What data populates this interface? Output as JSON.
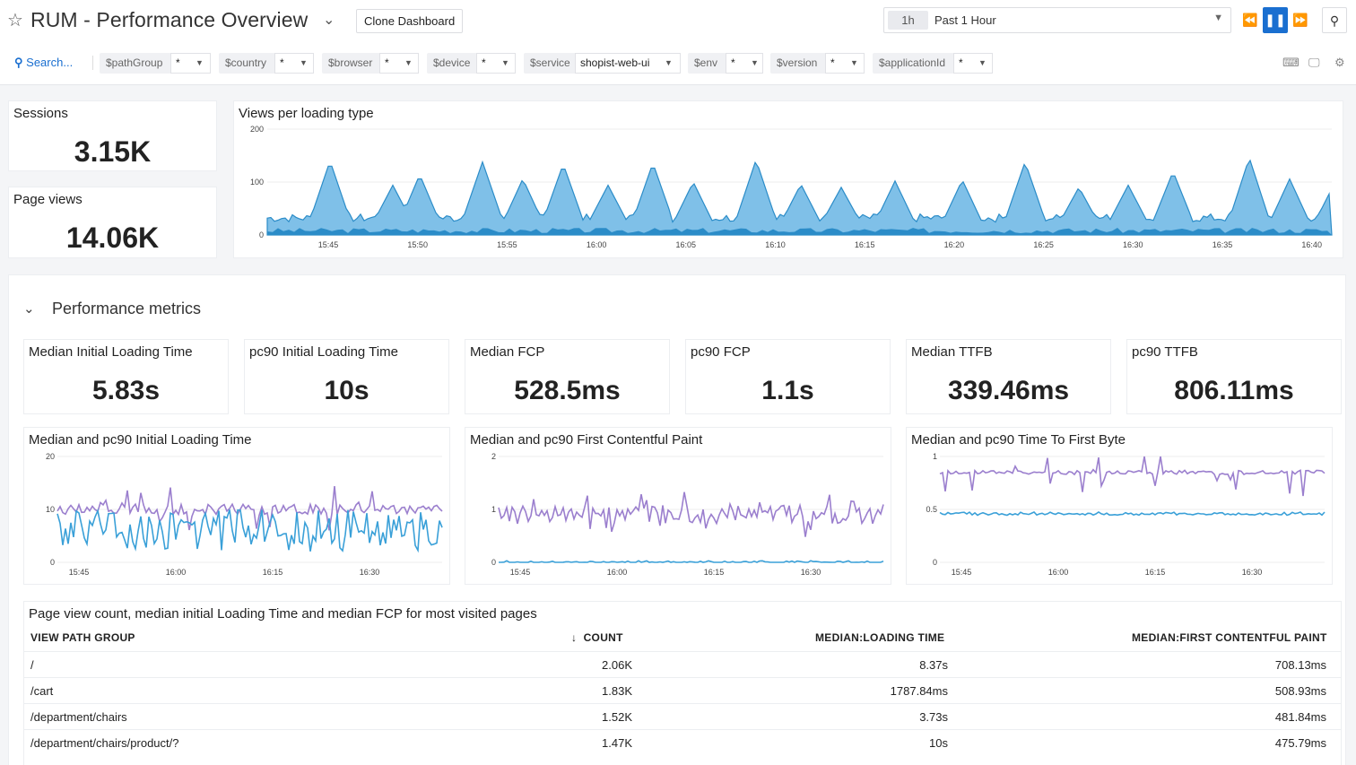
{
  "header": {
    "title": "RUM - Performance Overview",
    "clone_label": "Clone Dashboard",
    "time_chip": "1h",
    "time_label": "Past 1 Hour",
    "search_label": "Search..."
  },
  "template_vars": [
    {
      "name": "$pathGroup",
      "value": "*"
    },
    {
      "name": "$country",
      "value": "*"
    },
    {
      "name": "$browser",
      "value": "*"
    },
    {
      "name": "$device",
      "value": "*"
    },
    {
      "name": "$service",
      "value": "shopist-web-ui"
    },
    {
      "name": "$env",
      "value": "*"
    },
    {
      "name": "$version",
      "value": "*"
    },
    {
      "name": "$applicationId",
      "value": "*"
    }
  ],
  "summary": {
    "sessions_label": "Sessions",
    "sessions_value": "3.15K",
    "pageviews_label": "Page views",
    "pageviews_value": "14.06K"
  },
  "views_chart": {
    "title": "Views per loading type",
    "y_ticks": [
      "200",
      "100",
      "0"
    ],
    "x_ticks": [
      "15:45",
      "15:50",
      "15:55",
      "16:00",
      "16:05",
      "16:10",
      "16:15",
      "16:20",
      "16:25",
      "16:30",
      "16:35",
      "16:40"
    ]
  },
  "perf": {
    "section_title": "Performance metrics",
    "metrics": [
      {
        "label": "Median Initial Loading Time",
        "value": "5.83s"
      },
      {
        "label": "pc90 Initial Loading Time",
        "value": "10s"
      },
      {
        "label": "Median FCP",
        "value": "528.5ms"
      },
      {
        "label": "pc90 FCP",
        "value": "1.1s"
      },
      {
        "label": "Median TTFB",
        "value": "339.46ms"
      },
      {
        "label": "pc90 TTFB",
        "value": "806.11ms"
      }
    ],
    "charts": [
      {
        "title": "Median and pc90 Initial Loading Time",
        "y_ticks": [
          "20",
          "10",
          "0"
        ],
        "x_ticks": [
          "15:45",
          "16:00",
          "16:15",
          "16:30"
        ]
      },
      {
        "title": "Median and pc90 First Contentful Paint",
        "y_ticks": [
          "2",
          "1",
          "0"
        ],
        "x_ticks": [
          "15:45",
          "16:00",
          "16:15",
          "16:30"
        ]
      },
      {
        "title": "Median and pc90 Time To First Byte",
        "y_ticks": [
          "1",
          "0.5",
          "0"
        ],
        "x_ticks": [
          "15:45",
          "16:00",
          "16:15",
          "16:30"
        ]
      }
    ]
  },
  "table": {
    "title": "Page view count, median initial Loading Time and median FCP for most visited pages",
    "headers": [
      "VIEW PATH GROUP",
      "COUNT",
      "MEDIAN:LOADING TIME",
      "MEDIAN:FIRST CONTENTFUL PAINT"
    ],
    "sort_icon": "arrow-down",
    "rows": [
      [
        "/",
        "2.06K",
        "8.37s",
        "708.13ms"
      ],
      [
        "/cart",
        "1.83K",
        "1787.84ms",
        "508.93ms"
      ],
      [
        "/department/chairs",
        "1.52K",
        "3.73s",
        "481.84ms"
      ],
      [
        "/department/chairs/product/?",
        "1.47K",
        "10s",
        "475.79ms"
      ]
    ]
  },
  "colors": {
    "accent": "#1a6fd0",
    "area_light": "#7fc0e8",
    "area_dark": "#2b8cc8",
    "line_purple": "#9b7fce",
    "line_blue": "#3aa0d8"
  }
}
